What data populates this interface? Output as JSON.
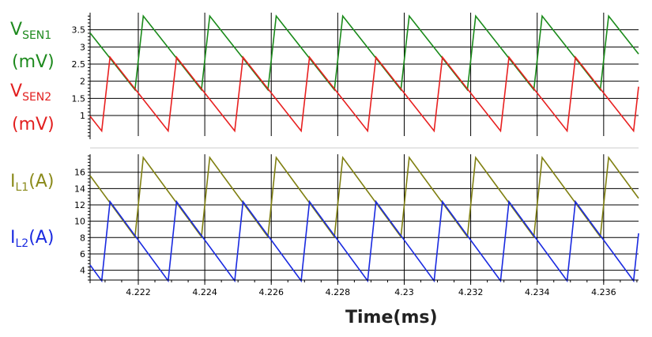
{
  "chart_data": [
    {
      "type": "line",
      "panel": "top",
      "legend": [
        {
          "main": "V",
          "sub": "SEN1",
          "unit": "(mV)",
          "color": "#1e8a1e"
        },
        {
          "main": "V",
          "sub": "SEN2",
          "unit": "(mV)",
          "color": "#e22020"
        }
      ],
      "ylim": [
        0.4,
        4.0
      ],
      "yticks": [
        1,
        1.5,
        2,
        2.5,
        3,
        3.5
      ],
      "ytick_labels": [
        "1",
        "1.5",
        "2",
        "2.5",
        "3",
        "3.5"
      ],
      "period_ms": 0.002,
      "series": [
        {
          "name": "VSEN1",
          "color": "#1a8a1a",
          "waveform": {
            "peak": 3.9,
            "valley": 1.75,
            "rise_start": 4.2219,
            "rise_ms": 0.00025
          }
        },
        {
          "name": "VSEN2",
          "color": "#e82020",
          "waveform": {
            "peak": 2.7,
            "valley": 0.55,
            "rise_start": 4.2209,
            "rise_ms": 0.00025
          }
        }
      ]
    },
    {
      "type": "line",
      "panel": "bottom",
      "legend": [
        {
          "main": "I",
          "sub": "L1",
          "unit": "(A)",
          "color": "#8a8a1a"
        },
        {
          "main": "I",
          "sub": "L2",
          "unit": "(A)",
          "color": "#1a2ae0"
        }
      ],
      "ylim": [
        2.8,
        18.2
      ],
      "yticks": [
        4,
        6,
        8,
        10,
        12,
        14,
        16
      ],
      "ytick_labels": [
        "4",
        "6",
        "8",
        "10",
        "12",
        "14",
        "16"
      ],
      "period_ms": 0.002,
      "series": [
        {
          "name": "IL1",
          "color": "#7f7f10",
          "waveform": {
            "peak": 17.8,
            "valley": 8.1,
            "rise_start": 4.2219,
            "rise_ms": 0.00025
          }
        },
        {
          "name": "IL2",
          "color": "#1a2ae0",
          "waveform": {
            "peak": 12.4,
            "valley": 2.7,
            "rise_start": 4.2209,
            "rise_ms": 0.00025
          }
        }
      ]
    }
  ],
  "x_axis": {
    "xlim": [
      4.22055,
      4.23705
    ],
    "ticks": [
      4.222,
      4.224,
      4.226,
      4.228,
      4.23,
      4.232,
      4.234,
      4.236
    ],
    "tick_labels": [
      "4.222",
      "4.224",
      "4.226",
      "4.228",
      "4.23",
      "4.232",
      "4.234",
      "4.236"
    ],
    "minor_step": 0.0005,
    "title": "Time(ms)"
  }
}
